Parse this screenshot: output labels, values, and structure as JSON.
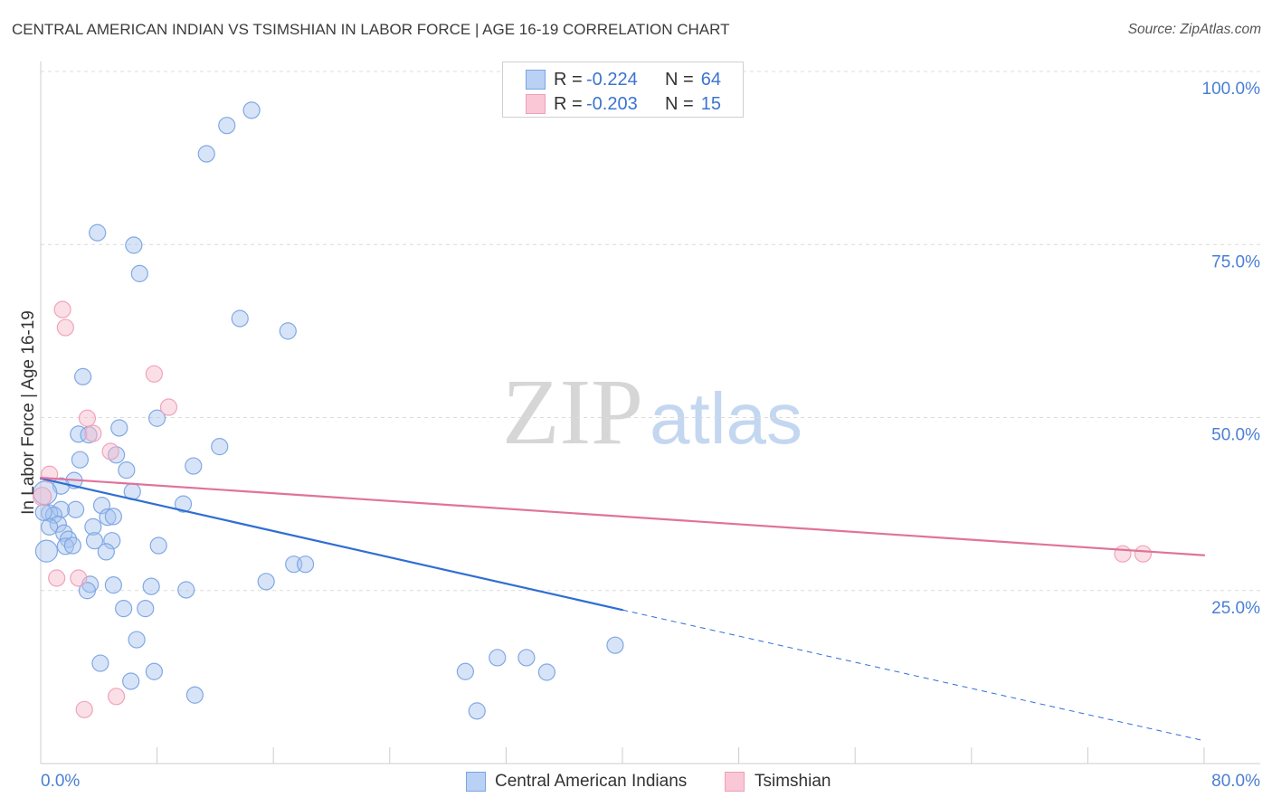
{
  "watermark": {
    "left": "ZIP",
    "right": "atlas"
  },
  "colors": {
    "tick_label": "#4a7fd4",
    "stat_value": "#3b74cf",
    "title": "#3c3c3c"
  },
  "chart_data": {
    "type": "scatter",
    "title": "CENTRAL AMERICAN INDIAN VS TSIMSHIAN IN LABOR FORCE | AGE 16-19 CORRELATION CHART",
    "source": "Source: ZipAtlas.com",
    "ylabel": "In Labor Force | Age 16-19",
    "xlim": [
      0,
      80
    ],
    "ylim": [
      0,
      100
    ],
    "grid": true,
    "legend_position": "top-center",
    "x_ticks": [
      0,
      8,
      16,
      24,
      32,
      40,
      48,
      56,
      64,
      72,
      80
    ],
    "x_tick_labels": [
      {
        "value": 0,
        "label": "0.0%"
      },
      {
        "value": 80,
        "label": "80.0%"
      }
    ],
    "y_tick_labels": [
      {
        "value": 25,
        "label": "25.0%"
      },
      {
        "value": 50,
        "label": "50.0%"
      },
      {
        "value": 75,
        "label": "75.0%"
      },
      {
        "value": 100,
        "label": "100.0%"
      }
    ],
    "stat_labels": {
      "r": "R =",
      "n": "N ="
    },
    "series": [
      {
        "name": "Central American Indians",
        "color": "#a6c4ef",
        "stroke": "#7ba4e2",
        "line_color": "#2f6fd3",
        "stats": {
          "r": "-0.224",
          "n": "64"
        },
        "points": [
          [
            14.5,
            94.4
          ],
          [
            12.8,
            92.2
          ],
          [
            11.4,
            88.1
          ],
          [
            3.9,
            76.7
          ],
          [
            6.4,
            74.9
          ],
          [
            6.8,
            70.8
          ],
          [
            13.7,
            64.3
          ],
          [
            17.0,
            62.5
          ],
          [
            2.9,
            55.9
          ],
          [
            8.0,
            49.9
          ],
          [
            5.4,
            48.5
          ],
          [
            2.6,
            47.6
          ],
          [
            3.3,
            47.5
          ],
          [
            12.3,
            45.8
          ],
          [
            5.2,
            44.6
          ],
          [
            2.7,
            43.9
          ],
          [
            10.5,
            43.0
          ],
          [
            5.9,
            42.4
          ],
          [
            2.3,
            40.9
          ],
          [
            1.4,
            40.1
          ],
          [
            6.3,
            39.3
          ],
          [
            0.3,
            39.1
          ],
          [
            9.8,
            37.5
          ],
          [
            4.2,
            37.3
          ],
          [
            2.4,
            36.7
          ],
          [
            1.4,
            36.7
          ],
          [
            0.6,
            36.2
          ],
          [
            0.9,
            35.9
          ],
          [
            4.6,
            35.6
          ],
          [
            5.0,
            35.7
          ],
          [
            1.2,
            34.6
          ],
          [
            0.6,
            34.2
          ],
          [
            3.6,
            34.2
          ],
          [
            1.6,
            33.3
          ],
          [
            1.9,
            32.4
          ],
          [
            3.7,
            32.2
          ],
          [
            4.9,
            32.2
          ],
          [
            1.7,
            31.4
          ],
          [
            2.2,
            31.5
          ],
          [
            0.4,
            30.7
          ],
          [
            4.5,
            30.6
          ],
          [
            8.1,
            31.5
          ],
          [
            17.4,
            28.8
          ],
          [
            18.2,
            28.8
          ],
          [
            15.5,
            26.3
          ],
          [
            3.4,
            25.9
          ],
          [
            5.0,
            25.8
          ],
          [
            7.6,
            25.6
          ],
          [
            3.2,
            25.0
          ],
          [
            10.0,
            25.1
          ],
          [
            5.7,
            22.4
          ],
          [
            7.2,
            22.4
          ],
          [
            6.6,
            17.9
          ],
          [
            39.5,
            17.1
          ],
          [
            31.4,
            15.3
          ],
          [
            33.4,
            15.3
          ],
          [
            4.1,
            14.5
          ],
          [
            7.8,
            13.3
          ],
          [
            29.2,
            13.3
          ],
          [
            34.8,
            13.2
          ],
          [
            6.2,
            11.9
          ],
          [
            10.6,
            9.9
          ],
          [
            30.0,
            7.6
          ],
          [
            0.2,
            36.3
          ]
        ],
        "trend": [
          [
            0,
            41.2
          ],
          [
            40,
            22.2
          ]
        ],
        "trend_extension": [
          [
            40,
            22.2
          ],
          [
            80,
            3.3
          ]
        ]
      },
      {
        "name": "Tsimshian",
        "color": "#f6b7ca",
        "stroke": "#ef9fb8",
        "line_color": "#e0739a",
        "stats": {
          "r": "-0.203",
          "n": "15"
        },
        "points": [
          [
            1.5,
            65.6
          ],
          [
            1.7,
            63.0
          ],
          [
            7.8,
            56.3
          ],
          [
            8.8,
            51.5
          ],
          [
            3.2,
            49.9
          ],
          [
            3.6,
            47.7
          ],
          [
            4.8,
            45.1
          ],
          [
            0.6,
            41.8
          ],
          [
            0.1,
            38.6
          ],
          [
            1.1,
            26.8
          ],
          [
            2.6,
            26.8
          ],
          [
            74.4,
            30.3
          ],
          [
            75.8,
            30.3
          ],
          [
            5.2,
            9.7
          ],
          [
            3.0,
            7.8
          ]
        ],
        "trend": [
          [
            0,
            41.3
          ],
          [
            80,
            30.1
          ]
        ]
      }
    ]
  }
}
